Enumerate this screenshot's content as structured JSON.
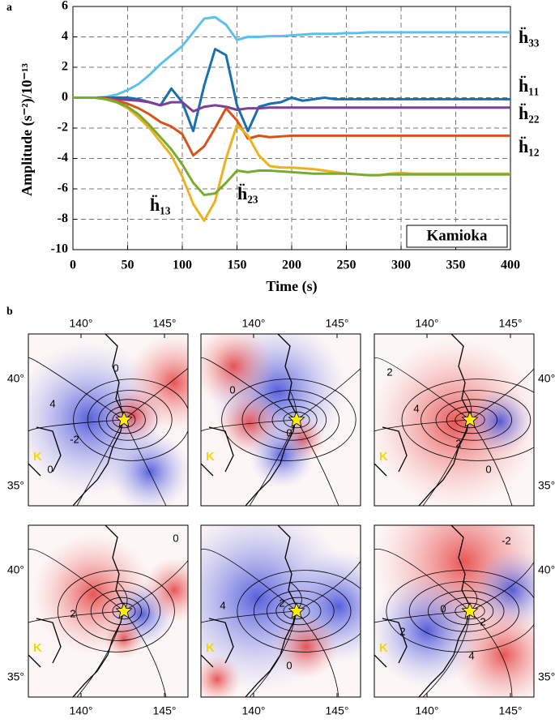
{
  "chart_data": {
    "type": "line",
    "panel_label": "a",
    "xlabel": "Time (s)",
    "ylabel": "Amplitude (s⁻²)/10⁻¹³",
    "annotation": "Kamioka",
    "x": [
      0,
      10,
      20,
      30,
      40,
      50,
      60,
      70,
      80,
      90,
      100,
      110,
      120,
      130,
      140,
      150,
      160,
      170,
      180,
      190,
      200,
      210,
      220,
      230,
      240,
      250,
      260,
      270,
      280,
      290,
      300,
      310,
      320,
      330,
      340,
      350,
      360,
      370,
      380,
      390,
      400
    ],
    "xlim": [
      0,
      400
    ],
    "xticks": [
      0,
      50,
      100,
      150,
      200,
      250,
      300,
      350,
      400
    ],
    "ylim": [
      -10,
      6
    ],
    "yticks": [
      -10,
      -8,
      -6,
      -4,
      -2,
      0,
      2,
      4,
      6
    ],
    "grid": true,
    "series": [
      {
        "name": "ḧ₃₃",
        "color": "#5bc0eb",
        "values": [
          0,
          0,
          0,
          0.05,
          0.2,
          0.5,
          0.9,
          1.5,
          2.2,
          2.8,
          3.4,
          4.3,
          5.2,
          5.3,
          4.8,
          3.8,
          4.0,
          4.0,
          4.05,
          4.05,
          4.1,
          4.15,
          4.2,
          4.2,
          4.2,
          4.25,
          4.25,
          4.3,
          4.3,
          4.3,
          4.3,
          4.3,
          4.3,
          4.3,
          4.3,
          4.3,
          4.3,
          4.3,
          4.3,
          4.3,
          4.3
        ]
      },
      {
        "name": "ḧ₁₁",
        "color": "#1a6faf",
        "values": [
          0,
          0,
          0,
          0,
          0,
          0,
          -0.1,
          -0.3,
          -0.5,
          0.6,
          -0.3,
          -2.2,
          0.8,
          3.2,
          2.8,
          -0.5,
          -2.2,
          -0.6,
          -0.4,
          -0.3,
          0,
          -0.2,
          -0.1,
          0,
          -0.1,
          -0.1,
          -0.1,
          -0.1,
          -0.1,
          -0.1,
          -0.1,
          -0.1,
          -0.1,
          -0.1,
          -0.1,
          -0.1,
          -0.1,
          -0.1,
          -0.1,
          -0.1,
          -0.1
        ]
      },
      {
        "name": "ḧ₂₂",
        "color": "#7e3f98",
        "values": [
          0,
          0,
          0,
          -0.05,
          -0.1,
          -0.15,
          -0.2,
          -0.3,
          -0.5,
          -0.3,
          -0.3,
          -0.9,
          -0.6,
          -0.5,
          -0.6,
          -0.8,
          -0.7,
          -0.7,
          -0.65,
          -0.65,
          -0.65,
          -0.65,
          -0.65,
          -0.65,
          -0.65,
          -0.65,
          -0.65,
          -0.65,
          -0.65,
          -0.65,
          -0.65,
          -0.65,
          -0.65,
          -0.65,
          -0.65,
          -0.65,
          -0.65,
          -0.65,
          -0.65,
          -0.65,
          -0.65
        ]
      },
      {
        "name": "ḧ₁₂",
        "color": "#d95319",
        "values": [
          0,
          0,
          0,
          -0.05,
          -0.2,
          -0.4,
          -0.7,
          -1.1,
          -1.6,
          -1.9,
          -2.4,
          -3.8,
          -3.2,
          -2.0,
          -0.7,
          -1.5,
          -2.7,
          -2.5,
          -2.6,
          -2.55,
          -2.5,
          -2.5,
          -2.5,
          -2.5,
          -2.5,
          -2.5,
          -2.5,
          -2.5,
          -2.5,
          -2.5,
          -2.5,
          -2.5,
          -2.5,
          -2.5,
          -2.5,
          -2.5,
          -2.5,
          -2.5,
          -2.5,
          -2.5,
          -2.5
        ]
      },
      {
        "name": "ḧ₁₃",
        "color": "#edb120",
        "values": [
          0,
          0,
          0,
          -0.1,
          -0.3,
          -0.7,
          -1.3,
          -2.0,
          -2.9,
          -3.8,
          -5.2,
          -7.0,
          -8.1,
          -6.8,
          -4.0,
          -1.8,
          -2.5,
          -3.8,
          -4.5,
          -4.6,
          -4.6,
          -4.65,
          -4.7,
          -4.8,
          -4.9,
          -5.0,
          -5.05,
          -5.1,
          -5.1,
          -5.0,
          -4.95,
          -5.0,
          -5.0,
          -5.0,
          -5.0,
          -5.0,
          -5.0,
          -5.0,
          -5.0,
          -5.0,
          -5.0
        ]
      },
      {
        "name": "ḧ₂₃",
        "color": "#77ac30",
        "values": [
          0,
          0,
          0,
          -0.1,
          -0.3,
          -0.6,
          -1.1,
          -1.8,
          -2.6,
          -3.4,
          -4.4,
          -5.6,
          -6.4,
          -6.3,
          -5.6,
          -4.8,
          -4.9,
          -4.8,
          -4.8,
          -4.85,
          -4.9,
          -4.95,
          -5.0,
          -5.0,
          -5.0,
          -5.0,
          -5.05,
          -5.1,
          -5.1,
          -5.05,
          -5.05,
          -5.05,
          -5.05,
          -5.05,
          -5.05,
          -5.05,
          -5.05,
          -5.05,
          -5.05,
          -5.05,
          -5.05
        ]
      }
    ]
  },
  "maps": {
    "panel_label": "b",
    "lon_labels": [
      "140°",
      "145°"
    ],
    "lat_labels": [
      "40°",
      "35°"
    ],
    "station": "K",
    "panels": [
      {
        "contour_labels": [
          "4",
          "-2",
          "0",
          "0"
        ]
      },
      {
        "contour_labels": [
          "0",
          "0"
        ]
      },
      {
        "contour_labels": [
          "2",
          "4",
          "2",
          "0"
        ]
      },
      {
        "contour_labels": [
          "0",
          "2"
        ]
      },
      {
        "contour_labels": [
          "4",
          "2",
          "0"
        ]
      },
      {
        "contour_labels": [
          "-2",
          "0",
          "2",
          "2",
          "4"
        ]
      }
    ]
  }
}
